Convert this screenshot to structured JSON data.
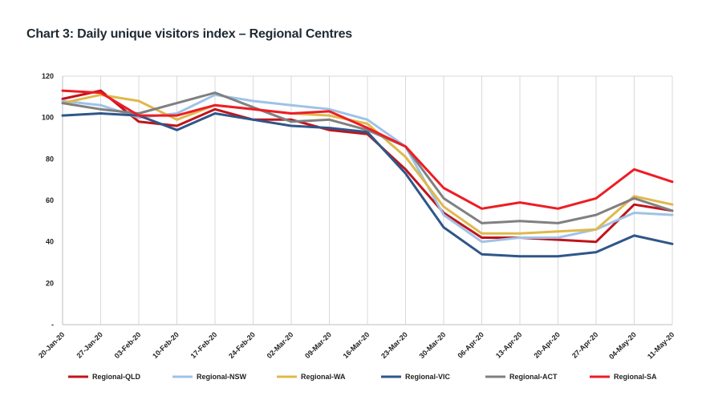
{
  "title": "Chart 3: Daily unique visitors index – Regional Centres",
  "chart_data": {
    "type": "line",
    "title": "Chart 3: Daily unique visitors index – Regional Centres",
    "xlabel": "",
    "ylabel": "",
    "ylim": [
      0,
      120
    ],
    "yticks": [
      0,
      20,
      40,
      60,
      80,
      100,
      120
    ],
    "ytick_labels": [
      "-",
      "20",
      "40",
      "60",
      "80",
      "100",
      "120"
    ],
    "grid": "vertical",
    "legend_position": "bottom",
    "x": [
      "20-Jan-20",
      "27-Jan-20",
      "03-Feb-20",
      "10-Feb-20",
      "17-Feb-20",
      "24-Feb-20",
      "02-Mar-20",
      "09-Mar-20",
      "16-Mar-20",
      "23-Mar-20",
      "30-Mar-20",
      "06-Apr-20",
      "13-Apr-20",
      "20-Apr-20",
      "27-Apr-20",
      "04-May-20",
      "11-May-20"
    ],
    "series": [
      {
        "name": "Regional-QLD",
        "color": "#c0141c",
        "values": [
          109,
          113,
          98,
          96,
          104,
          99,
          99,
          94,
          92,
          75,
          54,
          42,
          42,
          41,
          40,
          58,
          55
        ]
      },
      {
        "name": "Regional-NSW",
        "color": "#9ec3e6",
        "values": [
          108,
          106,
          100,
          102,
          111,
          108,
          106,
          104,
          99,
          86,
          53,
          40,
          42,
          42,
          46,
          54,
          53
        ]
      },
      {
        "name": "Regional-WA",
        "color": "#e0b84b",
        "values": [
          107,
          111,
          108,
          99,
          106,
          104,
          102,
          101,
          97,
          81,
          57,
          44,
          44,
          45,
          46,
          62,
          58
        ]
      },
      {
        "name": "Regional-VIC",
        "color": "#2f5689",
        "values": [
          101,
          102,
          101,
          94,
          102,
          99,
          96,
          95,
          93,
          73,
          47,
          34,
          33,
          33,
          35,
          43,
          39
        ]
      },
      {
        "name": "Regional-ACT",
        "color": "#808080",
        "values": [
          107,
          104,
          102,
          107,
          112,
          105,
          98,
          99,
          94,
          86,
          61,
          49,
          50,
          49,
          53,
          61,
          55
        ]
      },
      {
        "name": "Regional-SA",
        "color": "#ee1c25",
        "values": [
          113,
          112,
          101,
          101,
          106,
          104,
          102,
          103,
          95,
          86,
          66,
          56,
          59,
          56,
          61,
          75,
          69
        ]
      }
    ]
  }
}
